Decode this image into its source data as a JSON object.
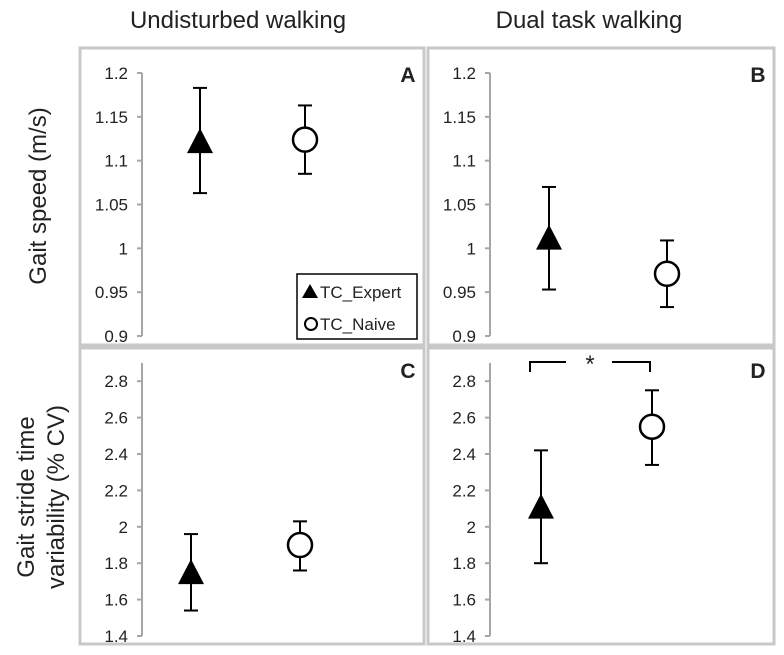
{
  "column_titles": [
    "Undisturbed walking",
    "Dual task walking"
  ],
  "row_titles": {
    "speed": [
      "Gait speed (m/s)"
    ],
    "variability": [
      "Gait stride time",
      "variability (% CV)"
    ]
  },
  "colors": {
    "frame": "#c8c8c8",
    "axis": "#a6a6a6",
    "marker": "#000000",
    "text": "#222222"
  },
  "legend": {
    "items": [
      {
        "label": "TC_Expert",
        "marker": "filled-triangle"
      },
      {
        "label": "TC_Naive",
        "marker": "open-circle"
      }
    ]
  },
  "chart_data": [
    {
      "panel": "A",
      "type": "scatter",
      "ylim": [
        0.9,
        1.2
      ],
      "yticks": [
        "0.9",
        "0.95",
        "1",
        "1.05",
        "1.1",
        "1.15",
        "1.2"
      ],
      "series": [
        {
          "name": "TC_Expert",
          "marker": "triangle",
          "y": 1.12,
          "err_low": 1.063,
          "err_high": 1.183
        },
        {
          "name": "TC_Naive",
          "marker": "circle",
          "y": 1.124,
          "err_low": 1.085,
          "err_high": 1.163
        }
      ]
    },
    {
      "panel": "B",
      "type": "scatter",
      "ylim": [
        0.9,
        1.2
      ],
      "yticks": [
        "0.9",
        "0.95",
        "1",
        "1.05",
        "1.1",
        "1.15",
        "1.2"
      ],
      "series": [
        {
          "name": "TC_Expert",
          "marker": "triangle",
          "y": 1.01,
          "err_low": 0.953,
          "err_high": 1.07
        },
        {
          "name": "TC_Naive",
          "marker": "circle",
          "y": 0.971,
          "err_low": 0.933,
          "err_high": 1.009
        }
      ]
    },
    {
      "panel": "C",
      "type": "scatter",
      "ylim": [
        1.4,
        2.9
      ],
      "yticks": [
        "1.4",
        "1.6",
        "1.8",
        "2",
        "2.2",
        "2.4",
        "2.6",
        "2.8"
      ],
      "series": [
        {
          "name": "TC_Expert",
          "marker": "triangle",
          "y": 1.74,
          "err_low": 1.54,
          "err_high": 1.96
        },
        {
          "name": "TC_Naive",
          "marker": "circle",
          "y": 1.9,
          "err_low": 1.76,
          "err_high": 2.03
        }
      ]
    },
    {
      "panel": "D",
      "type": "scatter",
      "ylim": [
        1.4,
        2.9
      ],
      "yticks": [
        "1.4",
        "1.6",
        "1.8",
        "2",
        "2.2",
        "2.4",
        "2.6",
        "2.8"
      ],
      "series": [
        {
          "name": "TC_Expert",
          "marker": "triangle",
          "y": 2.1,
          "err_low": 1.8,
          "err_high": 2.42
        },
        {
          "name": "TC_Naive",
          "marker": "circle",
          "y": 2.55,
          "err_low": 2.34,
          "err_high": 2.75
        }
      ],
      "significance": "*"
    }
  ]
}
